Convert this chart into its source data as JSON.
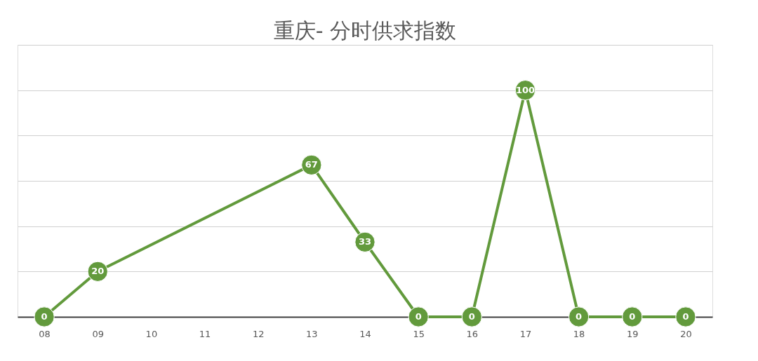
{
  "chart_data": {
    "type": "line",
    "title": "重庆- 分时供求指数",
    "categories": [
      "08",
      "09",
      "10",
      "11",
      "12",
      "13",
      "14",
      "15",
      "16",
      "17",
      "18",
      "19",
      "20"
    ],
    "series": [
      {
        "color": "#629a3c",
        "values": [
          0,
          20,
          null,
          null,
          null,
          67,
          33,
          0,
          0,
          100,
          0,
          0,
          0
        ]
      }
    ],
    "ylim": [
      0,
      120
    ],
    "yticks": [
      {
        "value": 0,
        "label": null
      },
      {
        "value": 20,
        "label": null
      },
      {
        "value": 40,
        "label": null
      },
      {
        "value": 60,
        "label": null
      },
      {
        "value": 80,
        "label": null
      },
      {
        "value": 100,
        "label": null
      },
      {
        "value": 120,
        "label": null
      }
    ],
    "tick_labels": "x",
    "grid": "y",
    "marker": "circle",
    "line_style": "solid",
    "data_labels": true
  }
}
